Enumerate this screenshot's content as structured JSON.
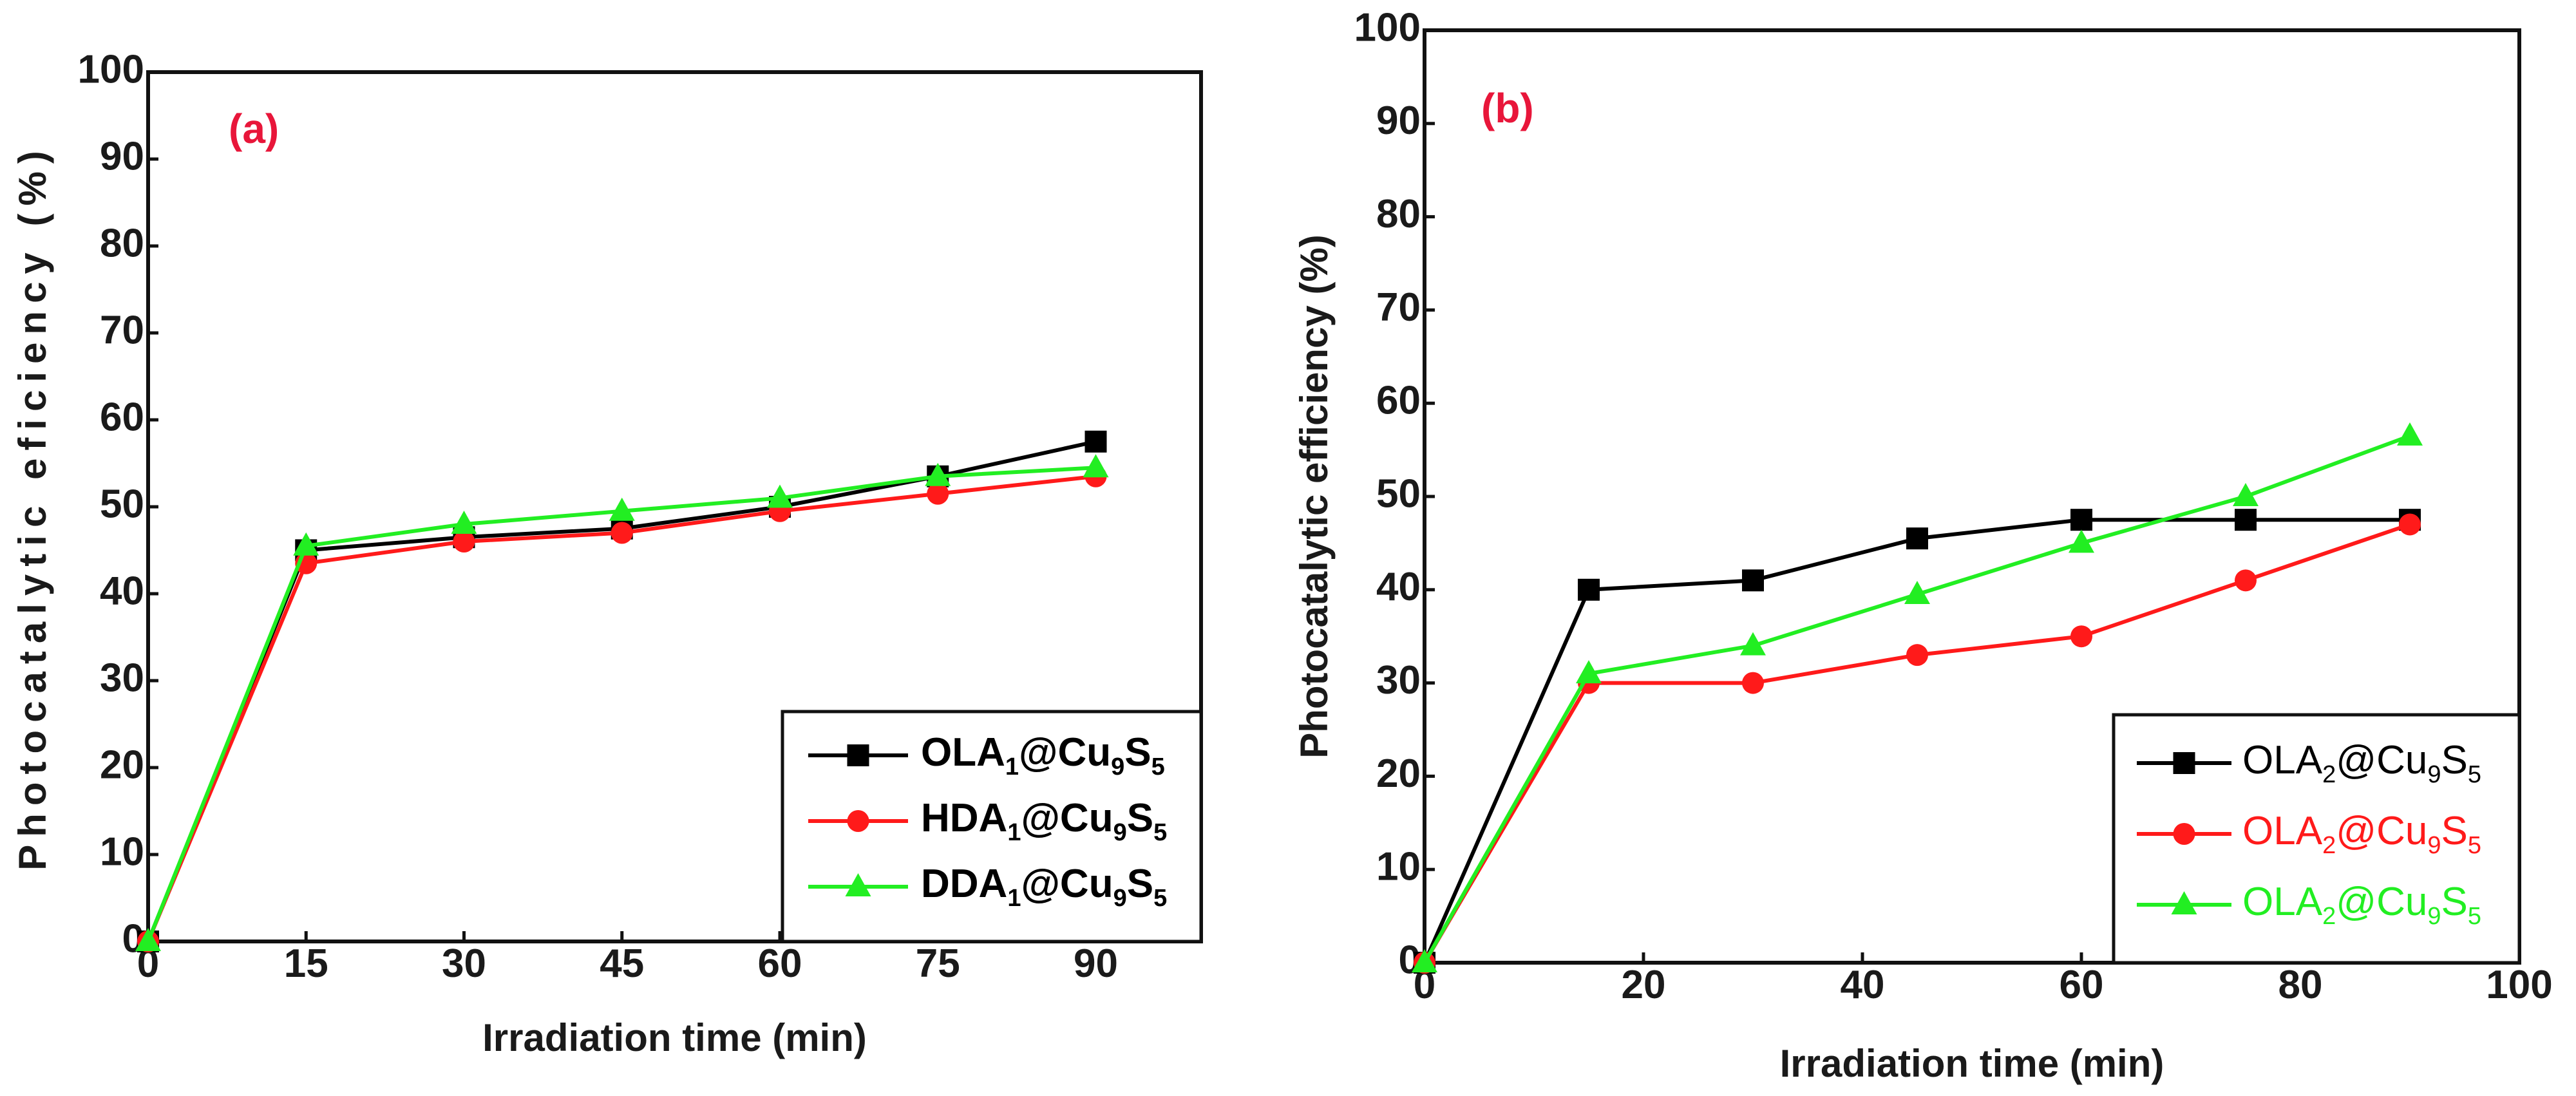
{
  "chart_data": [
    {
      "type": "line",
      "panel_label": "(a)",
      "xlabel": "Irradiation time (min)",
      "ylabel": "Photocatalytic eficiency (%)",
      "xlim": [
        0,
        100
      ],
      "ylim": [
        0,
        100
      ],
      "xticks": [
        0,
        15,
        30,
        45,
        60,
        75,
        90
      ],
      "yticks": [
        0,
        10,
        20,
        30,
        40,
        50,
        60,
        70,
        80,
        90,
        100
      ],
      "legend_position": "bottom-right",
      "x": [
        0,
        15,
        30,
        45,
        60,
        75,
        90
      ],
      "series": [
        {
          "name": "OLA1@Cu9S5",
          "legend": {
            "base": "OLA",
            "s1": "1",
            "mid": "@Cu",
            "s2": "9",
            "mid2": "S",
            "s3": "5"
          },
          "color": "#000000",
          "marker": "square",
          "values": [
            0,
            45,
            46.5,
            47.5,
            50,
            53.5,
            57.5
          ]
        },
        {
          "name": "HDA1@Cu9S5",
          "legend": {
            "base": "HDA",
            "s1": "1",
            "mid": "@Cu",
            "s2": "9",
            "mid2": "S",
            "s3": "5"
          },
          "color": "#ff1a1a",
          "marker": "circle",
          "values": [
            0,
            43.5,
            46,
            47,
            49.5,
            51.5,
            53.5
          ]
        },
        {
          "name": "DDA1@Cu9S5",
          "legend": {
            "base": "DDA",
            "s1": "1",
            "mid": "@Cu",
            "s2": "9",
            "mid2": "S",
            "s3": "5"
          },
          "color": "#22ee22",
          "marker": "triangle",
          "values": [
            0,
            45.5,
            48,
            49.5,
            51,
            53.5,
            54.5
          ]
        }
      ]
    },
    {
      "type": "line",
      "panel_label": "(b)",
      "xlabel": "Irradiation time (min)",
      "ylabel": "Photocatalytic efficiency (%)",
      "xlim": [
        0,
        100
      ],
      "ylim": [
        0,
        100
      ],
      "xticks": [
        0,
        20,
        40,
        60,
        80,
        100
      ],
      "yticks": [
        0,
        10,
        20,
        30,
        40,
        50,
        60,
        70,
        80,
        90,
        100
      ],
      "legend_position": "bottom-right",
      "x": [
        0,
        15,
        30,
        45,
        60,
        75,
        90
      ],
      "series": [
        {
          "name": "OLA2@Cu9S5",
          "legend": {
            "base": "OLA",
            "s1": "2",
            "mid": "@Cu",
            "s2": "9",
            "mid2": "S",
            "s3": "5"
          },
          "color": "#000000",
          "marker": "square",
          "values": [
            0,
            40,
            41,
            45.5,
            47.5,
            47.5,
            47.5
          ]
        },
        {
          "name": "OLA2@Cu9S5",
          "legend": {
            "base": "OLA",
            "s1": "2",
            "mid": "@Cu",
            "s2": "9",
            "mid2": "S",
            "s3": "5"
          },
          "color": "#ff1a1a",
          "marker": "circle",
          "values": [
            0,
            30,
            30,
            33,
            35,
            41,
            47
          ]
        },
        {
          "name": "OLA2@Cu9S5",
          "legend": {
            "base": "OLA",
            "s1": "2",
            "mid": "@Cu",
            "s2": "9",
            "mid2": "S",
            "s3": "5"
          },
          "color": "#22ee22",
          "marker": "triangle",
          "values": [
            0,
            31,
            34,
            39.5,
            45,
            50,
            56.5
          ]
        }
      ]
    }
  ]
}
